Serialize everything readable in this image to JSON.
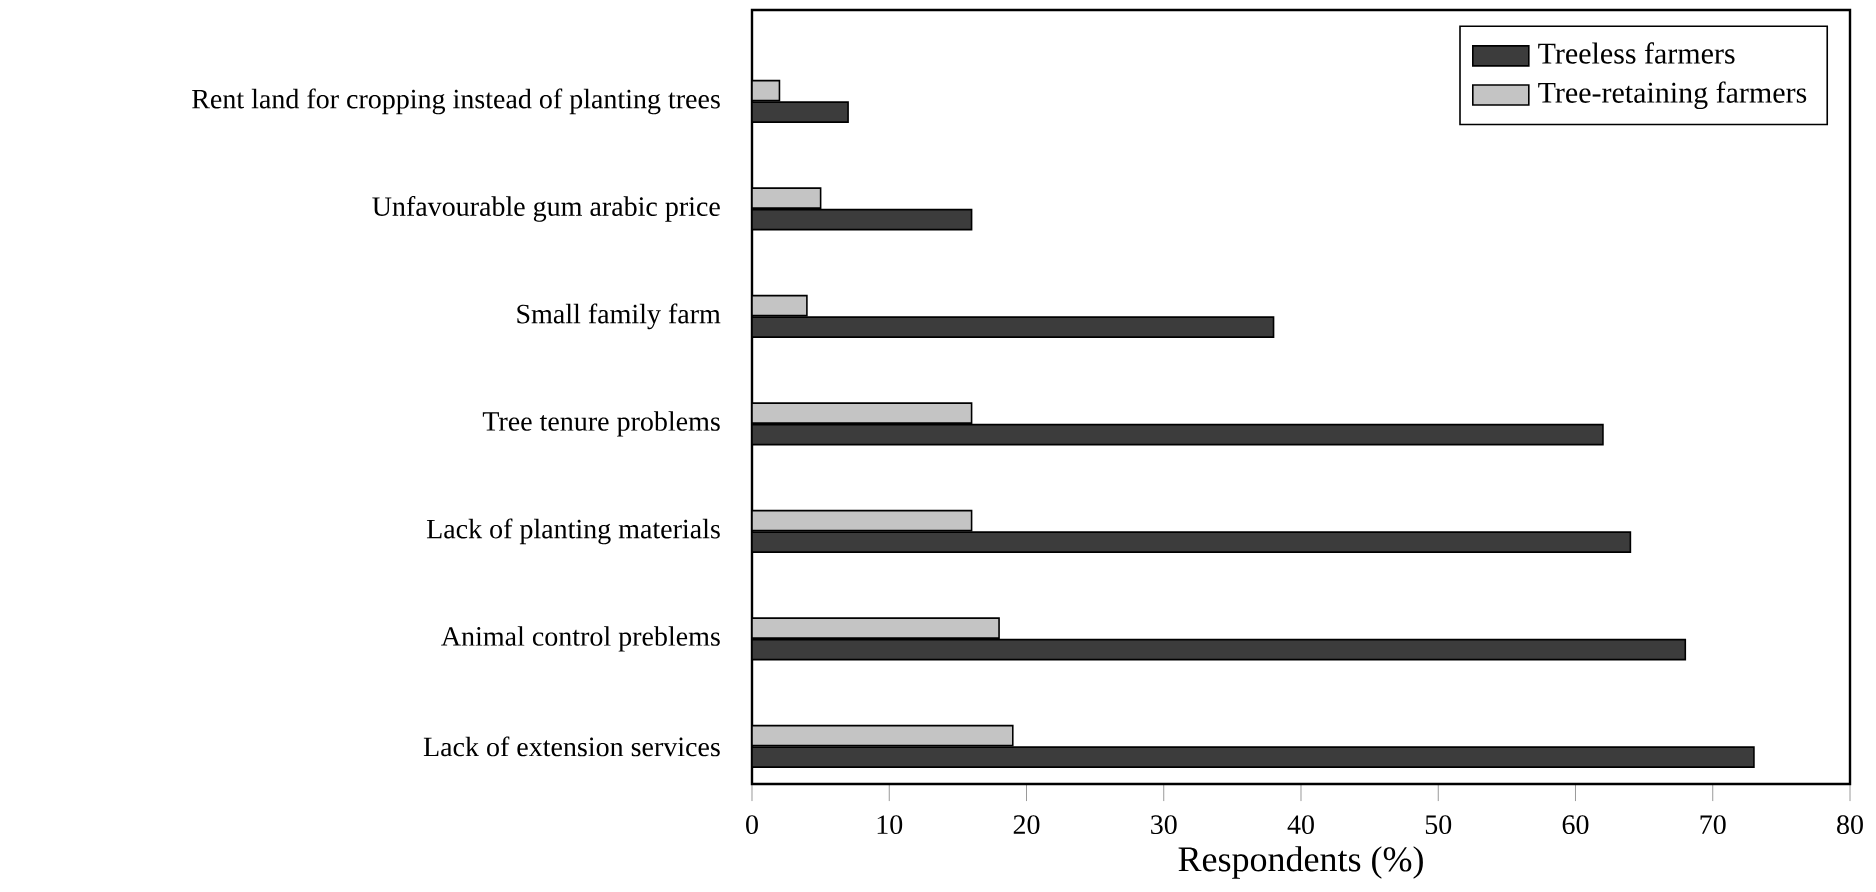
{
  "chart_data": {
    "type": "bar",
    "orientation": "horizontal",
    "xlabel": "Respondents (%)",
    "categories": [
      "Rent land for cropping instead of planting trees",
      "Unfavourable gum arabic price",
      "Small family farm",
      "Tree tenure problems",
      "Lack of planting materials",
      "Animal control preblems",
      "Lack of extension services"
    ],
    "series": [
      {
        "name": "Treeless farmers",
        "color": "#3c3c3c",
        "values": [
          7,
          16,
          38,
          62,
          64,
          68,
          73
        ]
      },
      {
        "name": "Tree-retaining farmers",
        "color": "#c4c4c4",
        "values": [
          2,
          5,
          4,
          16,
          16,
          18,
          19
        ]
      }
    ],
    "xlim": [
      0,
      80
    ],
    "xticks": [
      0,
      10,
      20,
      30,
      40,
      50,
      60,
      70,
      80
    ],
    "grid": false,
    "legend": "top right"
  }
}
